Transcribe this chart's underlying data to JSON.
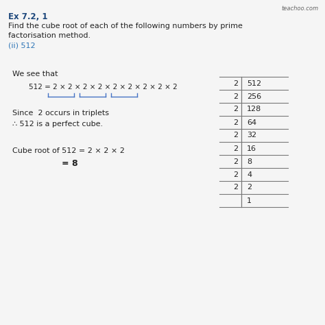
{
  "title": "Ex 7.2, 1",
  "subtitle_line1": "Find the cube root of each of the following numbers by prime",
  "subtitle_line2": "factorisation method.",
  "part": "(ii) 512",
  "watermark": "teachoo.com",
  "we_see_that": "We see that",
  "equation": "512 = 2 × 2 × 2 × 2 × 2 × 2 × 2 × 2 × 2",
  "since_text": "Since  2 occurs in triplets",
  "therefore_text": "∴ 512 is a perfect cube.",
  "cube_root_text": "Cube root of 512 = 2 × 2 × 2",
  "result_text": "= 8",
  "division_table": [
    [
      2,
      512
    ],
    [
      2,
      256
    ],
    [
      2,
      128
    ],
    [
      2,
      64
    ],
    [
      2,
      32
    ],
    [
      2,
      16
    ],
    [
      2,
      8
    ],
    [
      2,
      4
    ],
    [
      2,
      2
    ],
    [
      "",
      1
    ]
  ],
  "bg_color": "#f5f5f5",
  "text_color": "#222222",
  "blue_color": "#2e75b6",
  "title_color": "#1f497d",
  "bracket_color": "#4472c4",
  "line_color": "#777777"
}
